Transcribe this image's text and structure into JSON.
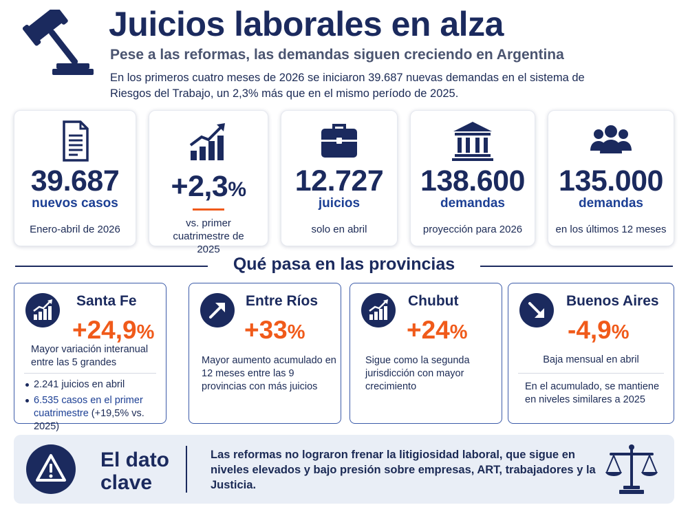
{
  "header": {
    "title": "Juicios laborales en alza",
    "subtitle": "Pese a las reformas, las demandas siguen creciendo en Argentina",
    "intro": "En los primeros cuatro meses de 2026 se iniciaron 39.687 nuevas demandas en el sistema de Riesgos del Trabajo, un 2,3% más que en el mismo período de 2025."
  },
  "stats": [
    {
      "icon": "document-icon",
      "value": "39.687",
      "unit": "nuevos casos",
      "note": "Enero-abril de 2026"
    },
    {
      "icon": "growth-chart-icon",
      "value": "+2,3",
      "value_suffix": "%",
      "note": "vs. primer cuatrimestre de 2025"
    },
    {
      "icon": "briefcase-icon",
      "value": "12.727",
      "unit": "juicios",
      "note": "solo en abril"
    },
    {
      "icon": "courthouse-icon",
      "value": "138.600",
      "unit": "demandas",
      "note": "proyección para 2026"
    },
    {
      "icon": "people-icon",
      "value": "135.000",
      "unit": "demandas",
      "note": "en los últimos 12 meses"
    }
  ],
  "provinces_section": {
    "title": "Qué pasa en las provincias"
  },
  "provinces": [
    {
      "name": "Santa Fe",
      "icon": "growth-chart-icon",
      "value": "+24,9",
      "suffix": "%",
      "desc": "Mayor variación interanual entre las 5 grandes",
      "bullets": [
        {
          "text": "2.241 juicios en abril"
        },
        {
          "highlight": "6.535 casos en el primer cuatrimestre",
          "rest": " (+19,5% vs. 2025)"
        }
      ]
    },
    {
      "name": "Entre Ríos",
      "icon": "arrow-up-right-icon",
      "value": "+33",
      "suffix": "%",
      "desc": "Mayor aumento acumulado en 12 meses entre las 9 provincias con más juicios"
    },
    {
      "name": "Chubut",
      "icon": "growth-chart-icon",
      "value": "+24",
      "suffix": "%",
      "desc": "Sigue como la segunda jurisdicción con mayor crecimiento"
    },
    {
      "name": "Buenos Aires",
      "icon": "arrow-down-right-icon",
      "value": "-4,9",
      "suffix": "%",
      "desc": "Baja mensual en abril",
      "note": "En el acumulado, se mantiene en niveles similares a 2025"
    }
  ],
  "footer": {
    "label": "El dato clave",
    "text": "Las reformas no lograron frenar la litigiosidad laboral, que sigue en niveles elevados y bajo presión sobre empresas, ART, trabajadores y la Justicia."
  },
  "colors": {
    "navy": "#1b2a5e",
    "orange": "#f05a1a",
    "blue": "#1c3f94",
    "footer_bg": "#e9eef6"
  }
}
